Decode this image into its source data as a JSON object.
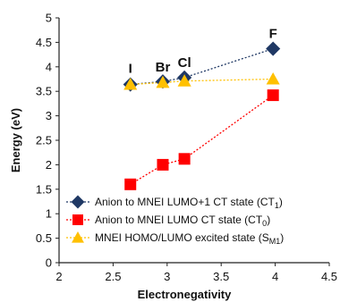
{
  "chart_data": {
    "type": "scatter",
    "xlabel": "Electronegativity",
    "ylabel": "Energy (eV)",
    "xlim": [
      2,
      4.5
    ],
    "ylim": [
      0,
      5
    ],
    "xticks": [
      "2",
      "2.5",
      "3",
      "3.5",
      "4",
      "4.5"
    ],
    "yticks": [
      "0",
      "0.5",
      "1",
      "1.5",
      "2",
      "2.5",
      "3",
      "3.5",
      "4",
      "4.5",
      "5"
    ],
    "grid": false,
    "legend_position": "bottom-right",
    "point_labels": [
      {
        "text": "I",
        "x": 2.66,
        "y": 3.66
      },
      {
        "text": "Br",
        "x": 2.96,
        "y": 3.69
      },
      {
        "text": "Cl",
        "x": 3.16,
        "y": 3.78
      },
      {
        "text": "F",
        "x": 3.98,
        "y": 4.37
      }
    ],
    "series": [
      {
        "legend_main": "Anion to MNEI LUMO+1 CT state (CT",
        "legend_sub": "1",
        "legend_end": ")",
        "marker": "diamond",
        "color": "#1f3864",
        "x": [
          2.66,
          2.96,
          3.16,
          3.98
        ],
        "y": [
          3.64,
          3.7,
          3.78,
          4.37
        ]
      },
      {
        "legend_main": "Anion to MNEI LUMO CT state (CT",
        "legend_sub": "0",
        "legend_end": ")",
        "marker": "square",
        "color": "#ff0000",
        "x": [
          2.66,
          2.96,
          3.16,
          3.98
        ],
        "y": [
          1.6,
          2.0,
          2.12,
          3.42
        ]
      },
      {
        "legend_main": "MNEI HOMO/LUMO excited state (S",
        "legend_sub": "M1",
        "legend_end": ")",
        "marker": "triangle",
        "color": "#ffc000",
        "x": [
          2.66,
          2.96,
          3.16,
          3.98
        ],
        "y": [
          3.64,
          3.68,
          3.71,
          3.75
        ]
      }
    ]
  }
}
